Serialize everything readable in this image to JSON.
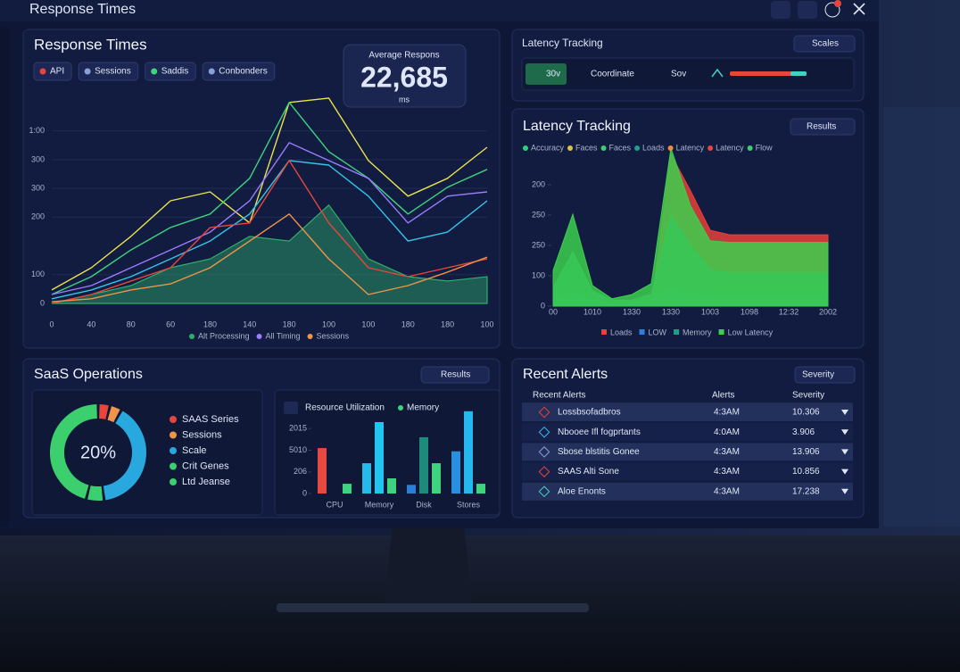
{
  "header": {
    "title": "Response Times"
  },
  "response_panel": {
    "title": "Response Times",
    "chips": [
      "API",
      "Sessions",
      "Saddis",
      "Conbonders"
    ],
    "average": {
      "label": "Average Respons",
      "value": "22,685",
      "unit": "ms"
    }
  },
  "latency_toolbar": {
    "title": "Latency Tracking",
    "button": "Scales",
    "items": [
      "30v",
      "Coordinate",
      "Sov"
    ]
  },
  "latency_panel": {
    "title": "Latency Tracking",
    "button": "Results",
    "top_legend": [
      {
        "label": "Accuracy",
        "color": "#2fd07a"
      },
      {
        "label": "Faces",
        "color": "#d6c54a"
      },
      {
        "label": "Faces",
        "color": "#3ccf6e"
      },
      {
        "label": "Loads",
        "color": "#1f9e8a"
      },
      {
        "label": "Latency",
        "color": "#f08a3c"
      },
      {
        "label": "Latency",
        "color": "#e8453c"
      },
      {
        "label": "Flow",
        "color": "#3ccf6e"
      }
    ]
  },
  "saas_panel": {
    "title": "SaaS Operations",
    "button": "Results"
  },
  "alerts": {
    "title": "Recent Alerts",
    "button": "Severity",
    "columns": [
      "Recent Alerts",
      "Alerts",
      "Severity"
    ],
    "rows": [
      [
        "Lossbsofadbros",
        "4:3AM",
        "10.306"
      ],
      [
        "Nbooee Ifl fogprtants",
        "4:0AM",
        "3.906"
      ],
      [
        "Sbose blstitis Gonee",
        "4:3AM",
        "13.906"
      ],
      [
        "SAAS Alti Sone",
        "4:3AM",
        "10.856"
      ],
      [
        "Aloe Enonts",
        "4:3AM",
        "17.238"
      ]
    ]
  },
  "chart_data": [
    {
      "type": "line",
      "categories": [
        "0",
        "40",
        "80",
        "60",
        "180",
        "140",
        "180",
        "100",
        "100",
        "180",
        "180",
        "100"
      ],
      "ylim": [
        0,
        720
      ],
      "yticks": [
        0,
        100,
        {
          "value": 300,
          "label": "200"
        },
        {
          "value": 400,
          "label": "300"
        },
        {
          "value": 500,
          "label": "300"
        },
        {
          "value": 600,
          "label": "1:00"
        }
      ],
      "grid": true,
      "series": [
        {
          "name": "Alt Processing",
          "color": "#2fae6a",
          "fill": true,
          "values": [
            0,
            31,
            62,
            124,
            155,
            233,
            217,
            342,
            155,
            93,
            78,
            93
          ]
        },
        {
          "color": "#e9e24e",
          "values": [
            47,
            124,
            233,
            357,
            388,
            280,
            699,
            714,
            497,
            373,
            435,
            543
          ]
        },
        {
          "color": "#3fd27f",
          "values": [
            31,
            93,
            186,
            264,
            311,
            435,
            699,
            528,
            435,
            311,
            404,
            466
          ]
        },
        {
          "name": "All Timing",
          "color": "#9b7cff",
          "values": [
            31,
            62,
            124,
            186,
            248,
            357,
            559,
            497,
            435,
            280,
            373,
            388
          ]
        },
        {
          "color": "#33c6e8",
          "values": [
            16,
            47,
            93,
            155,
            217,
            311,
            497,
            481,
            373,
            217,
            248,
            357
          ]
        },
        {
          "color": "#e8453c",
          "values": [
            0,
            31,
            78,
            124,
            264,
            280,
            497,
            280,
            124,
            93,
            124,
            155
          ]
        },
        {
          "name": "Sessions",
          "color": "#f0944a",
          "values": [
            6,
            16,
            47,
            68,
            124,
            217,
            311,
            155,
            31,
            62,
            109,
            161
          ]
        }
      ]
    },
    {
      "type": "area",
      "categories": [
        "00",
        null,
        "1010",
        null,
        "1330",
        null,
        "1330",
        null,
        "1003",
        null,
        "1098",
        null,
        "12:32",
        null,
        "2002"
      ],
      "ylim": [
        0,
        550
      ],
      "yticks": [
        0,
        100,
        {
          "value": 200,
          "label": "250"
        },
        {
          "value": 300,
          "label": "250"
        },
        {
          "value": 400,
          "label": "200"
        }
      ],
      "series": [
        {
          "name": "Loads",
          "color": "#e8403a",
          "values": [
            0,
            0,
            0,
            0,
            0,
            0,
            500,
            380,
            250,
            235,
            235,
            235,
            235,
            235,
            235
          ]
        },
        {
          "name": "LOW",
          "color": "#2f7fe0",
          "values": [
            20,
            40,
            20,
            10,
            10,
            20,
            60,
            40,
            30,
            30,
            30,
            30,
            30,
            30,
            30
          ]
        },
        {
          "name": "Memory",
          "color": "#1f9e8a",
          "values": [
            60,
            180,
            50,
            20,
            20,
            40,
            300,
            200,
            120,
            110,
            110,
            110,
            110,
            110,
            110
          ]
        },
        {
          "name": "Low Latency",
          "color": "#3ccf4e",
          "values": [
            118,
            303,
            68,
            24,
            38,
            74,
            520,
            330,
            215,
            210,
            210,
            210,
            210,
            210,
            210
          ]
        }
      ]
    },
    {
      "type": "pie",
      "center_label": "20%",
      "categories": [
        "SAAS Series",
        "Sessions",
        "Scale",
        "Crit Genes",
        "Ltd Jeanse"
      ],
      "values": [
        4,
        4,
        40,
        6,
        46
      ],
      "colors": [
        "#e8453c",
        "#f0944a",
        "#29a8e0",
        "#3ccf6e",
        "#3ccf6e"
      ]
    },
    {
      "type": "bar",
      "title": "Resource Utilization",
      "categories": [
        "CPU",
        "Memory",
        "Disk",
        "Stores"
      ],
      "ylim": [
        0,
        4
      ],
      "yticks": [
        0,
        {
          "value": 1,
          "label": "206"
        },
        {
          "value": 2,
          "label": "5010"
        },
        {
          "value": 3,
          "label": "2015"
        }
      ],
      "series": [
        {
          "colors": [
            "#e5493f",
            "#2ab8e8",
            "#2a7fd8",
            "#2a8fe0"
          ],
          "values": [
            2.1,
            1.4,
            0.4,
            1.95
          ]
        },
        {
          "colors": [
            "#2ab8e8",
            "#22c4f0",
            "#1e8a7a",
            "#25b8ee"
          ],
          "values": [
            null,
            3.3,
            2.6,
            3.8
          ]
        },
        {
          "name": "Memory",
          "color": "#3fd27f",
          "values": [
            0.45,
            0.7,
            1.4,
            0.45
          ]
        }
      ]
    }
  ]
}
